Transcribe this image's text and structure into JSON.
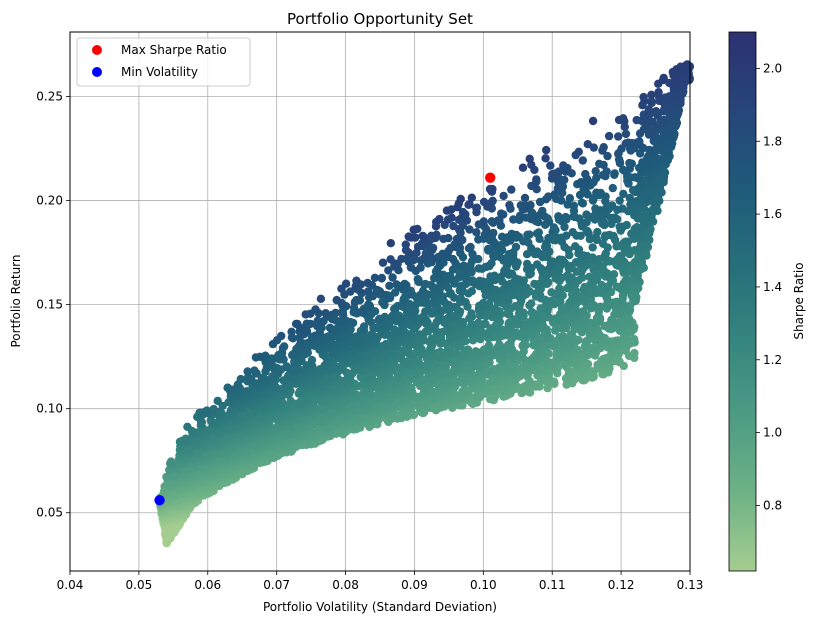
{
  "chart_data": {
    "type": "scatter",
    "title": "Portfolio Opportunity Set",
    "xlabel": "Portfolio Volatility (Standard Deviation)",
    "ylabel": "Portfolio Return",
    "colorbar_label": "Sharpe Ratio",
    "xlim": [
      0.04,
      0.13
    ],
    "ylim": [
      0.022,
      0.281
    ],
    "xticks": [
      "0.04",
      "0.05",
      "0.06",
      "0.07",
      "0.08",
      "0.09",
      "0.10",
      "0.11",
      "0.12",
      "0.13"
    ],
    "yticks": [
      "0.05",
      "0.10",
      "0.15",
      "0.20",
      "0.25"
    ],
    "colorbar_range": [
      0.62,
      2.1
    ],
    "colorbar_ticks": [
      "0.8",
      "1.0",
      "1.2",
      "1.4",
      "1.6",
      "1.8",
      "2.0"
    ],
    "colormap": "crest",
    "colormap_stops": [
      "#a5cd90",
      "#6eb286",
      "#4e9c84",
      "#35857f",
      "#266e7b",
      "#1f5a7a",
      "#27457a",
      "#2c3172"
    ],
    "grid": true,
    "legend_position": "top-left",
    "highlights": [
      {
        "name": "Max Sharpe Ratio",
        "x": 0.101,
        "y": 0.211,
        "color": "#ff0000"
      },
      {
        "name": "Min Volatility",
        "x": 0.053,
        "y": 0.056,
        "color": "#0000ff"
      }
    ],
    "point_cloud": {
      "count": 5000,
      "sharpe_ratio_min": 0.64,
      "sharpe_ratio_max": 2.09,
      "upper_frontier": [
        [
          0.053,
          0.056
        ],
        [
          0.0545,
          0.075
        ],
        [
          0.0565,
          0.09
        ],
        [
          0.06,
          0.104
        ],
        [
          0.065,
          0.12
        ],
        [
          0.07,
          0.136
        ],
        [
          0.075,
          0.151
        ],
        [
          0.08,
          0.163
        ],
        [
          0.085,
          0.178
        ],
        [
          0.09,
          0.191
        ],
        [
          0.095,
          0.2
        ],
        [
          0.101,
          0.211
        ],
        [
          0.105,
          0.219
        ],
        [
          0.11,
          0.228
        ],
        [
          0.115,
          0.237
        ],
        [
          0.12,
          0.248
        ],
        [
          0.125,
          0.259
        ],
        [
          0.13,
          0.268
        ]
      ],
      "lower_frontier": [
        [
          0.053,
          0.056
        ],
        [
          0.054,
          0.035
        ],
        [
          0.058,
          0.054
        ],
        [
          0.062,
          0.063
        ],
        [
          0.07,
          0.077
        ],
        [
          0.08,
          0.088
        ],
        [
          0.09,
          0.097
        ],
        [
          0.1,
          0.103
        ],
        [
          0.11,
          0.11
        ],
        [
          0.116,
          0.114
        ],
        [
          0.12,
          0.12
        ],
        [
          0.122,
          0.122
        ]
      ]
    }
  }
}
